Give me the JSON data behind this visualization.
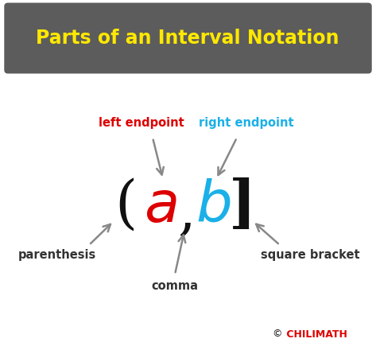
{
  "title": "Parts of an Interval Notation",
  "title_color": "#FFE800",
  "title_bg_color": "#5c5c5c",
  "bg_color": "#ffffff",
  "a_color": "#dd0000",
  "b_color": "#1ab0e8",
  "bracket_color": "#111111",
  "label_left_endpoint": "left endpoint",
  "label_right_endpoint": "right endpoint",
  "label_parenthesis": "parenthesis",
  "label_comma": "comma",
  "label_square_bracket": "square bracket",
  "label_left_endpoint_color": "#dd0000",
  "label_right_endpoint_color": "#1ab0e8",
  "label_other_color": "#333333",
  "arrow_color": "#888888",
  "copyright_symbol_color": "#111111",
  "copyright_text_color": "#dd0000",
  "fig_width": 4.73,
  "fig_height": 4.5,
  "dpi": 100
}
